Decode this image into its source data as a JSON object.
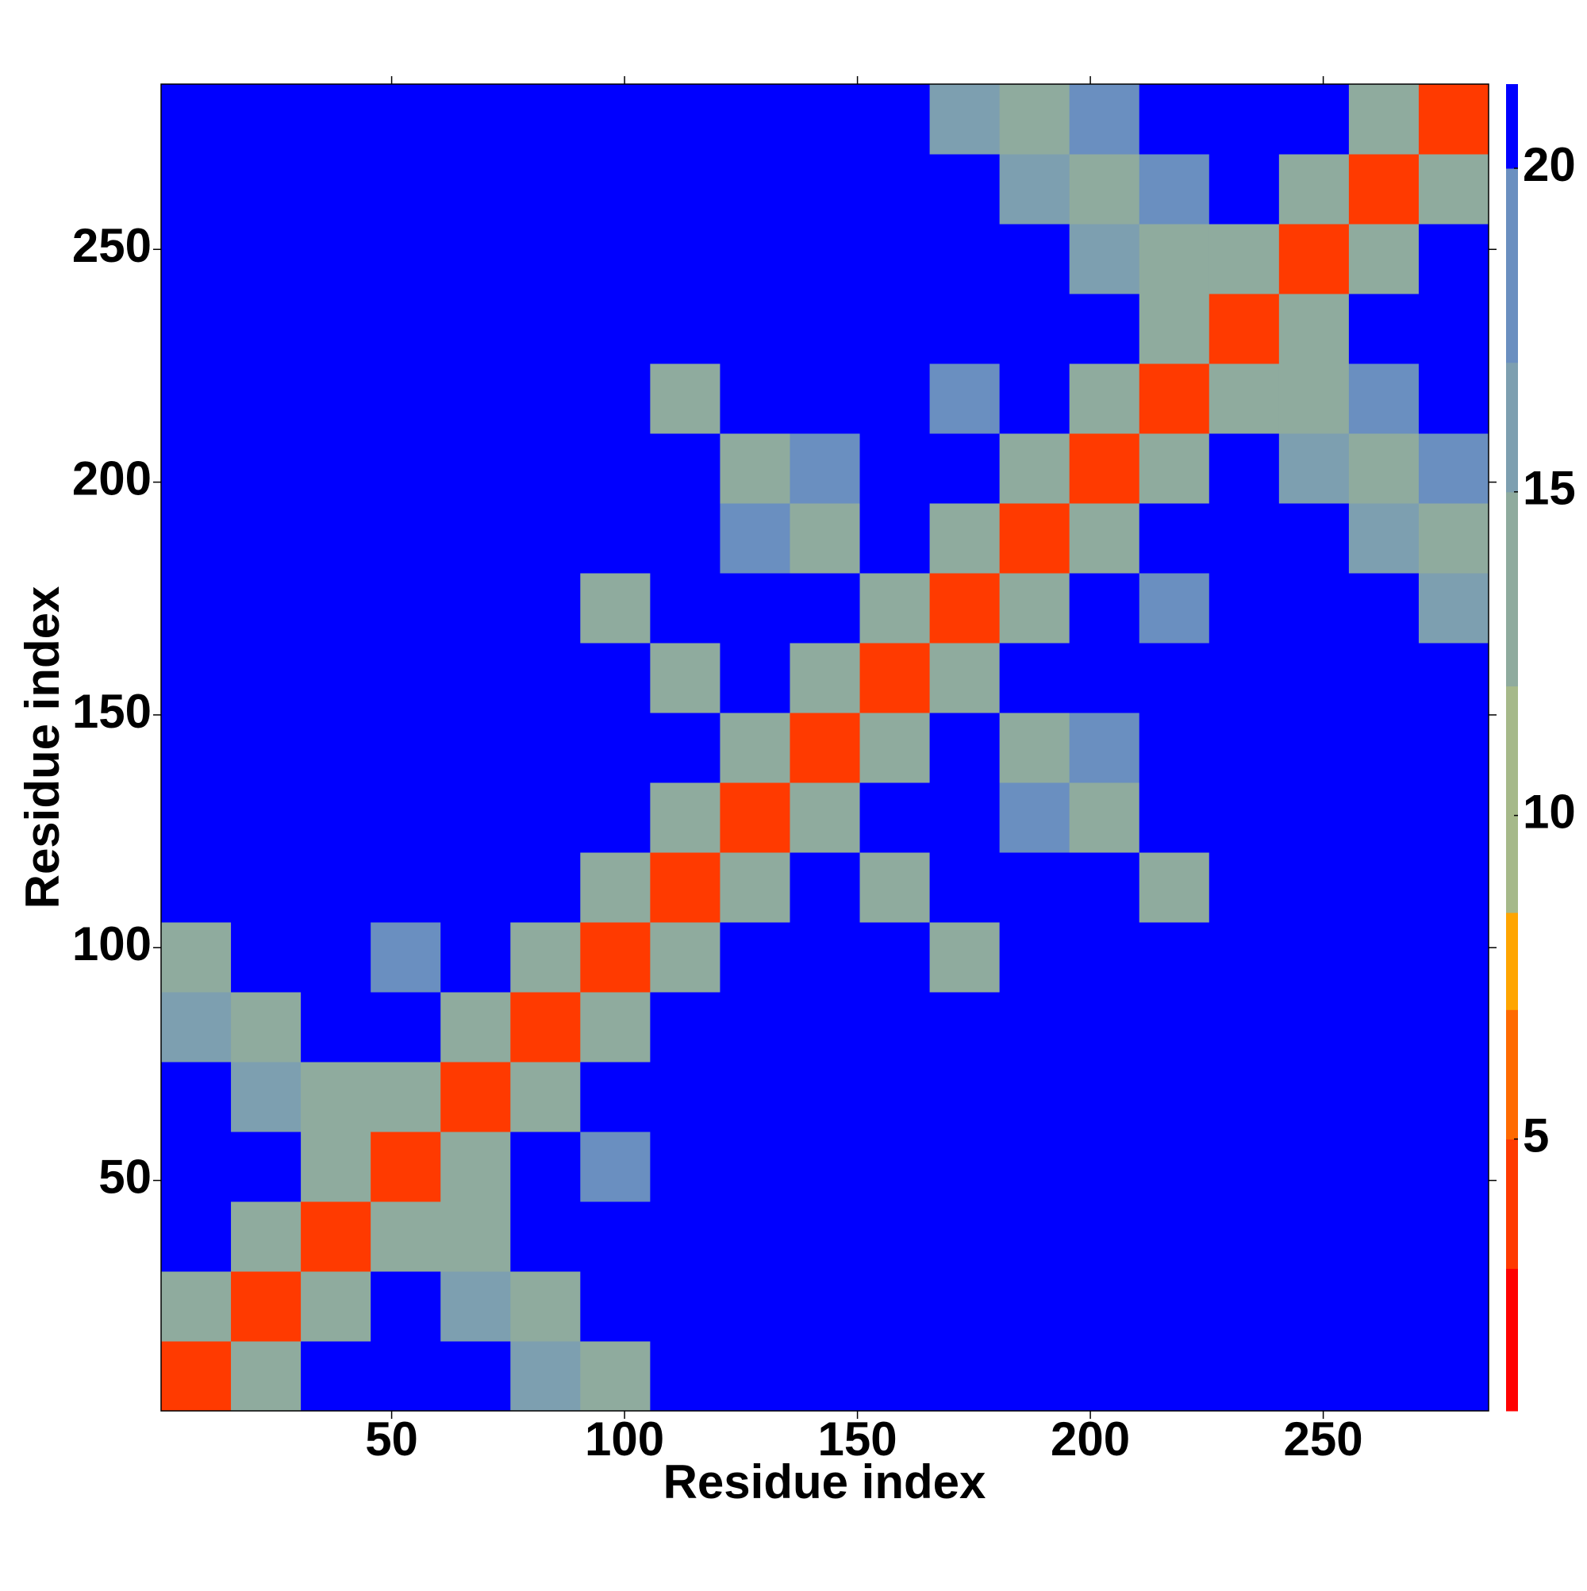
{
  "chart_data": {
    "type": "heatmap",
    "x_label": "Residue index",
    "y_label": "Residue index",
    "x": [
      8,
      23,
      38,
      53,
      68,
      83,
      98,
      113,
      128,
      143,
      158,
      173,
      188,
      203,
      218,
      233,
      248,
      263,
      278
    ],
    "y": [
      8,
      23,
      38,
      53,
      68,
      83,
      98,
      113,
      128,
      143,
      158,
      173,
      188,
      203,
      218,
      233,
      248,
      263,
      278
    ],
    "z": [
      [
        4,
        14,
        21,
        21,
        21,
        15,
        13,
        21,
        21,
        21,
        21,
        21,
        21,
        21,
        21,
        21,
        21,
        21,
        21
      ],
      [
        14,
        4,
        14,
        21,
        15,
        13,
        21,
        21,
        21,
        21,
        21,
        21,
        21,
        21,
        21,
        21,
        21,
        21,
        21
      ],
      [
        21,
        14,
        4,
        14,
        13,
        21,
        21,
        21,
        21,
        21,
        21,
        21,
        21,
        21,
        21,
        21,
        21,
        21,
        21
      ],
      [
        21,
        21,
        14,
        4,
        14,
        21,
        19,
        21,
        21,
        21,
        21,
        21,
        21,
        21,
        21,
        21,
        21,
        21,
        21
      ],
      [
        21,
        15,
        13,
        14,
        4,
        14,
        21,
        21,
        21,
        21,
        21,
        21,
        21,
        21,
        21,
        21,
        21,
        21,
        21
      ],
      [
        15,
        13,
        21,
        21,
        14,
        4,
        14,
        21,
        21,
        21,
        21,
        21,
        21,
        21,
        21,
        21,
        21,
        21,
        21
      ],
      [
        13,
        21,
        21,
        19,
        21,
        14,
        4,
        14,
        21,
        21,
        21,
        12,
        21,
        21,
        21,
        21,
        21,
        21,
        21
      ],
      [
        21,
        21,
        21,
        21,
        21,
        21,
        14,
        4,
        14,
        21,
        12,
        21,
        21,
        21,
        12,
        21,
        21,
        21,
        21
      ],
      [
        21,
        21,
        21,
        21,
        21,
        21,
        21,
        14,
        4,
        12,
        21,
        21,
        19,
        12,
        21,
        21,
        21,
        21,
        21
      ],
      [
        21,
        21,
        21,
        21,
        21,
        21,
        21,
        21,
        12,
        4,
        14,
        21,
        12,
        19,
        21,
        21,
        21,
        21,
        21
      ],
      [
        21,
        21,
        21,
        21,
        21,
        21,
        21,
        12,
        21,
        14,
        4,
        12,
        21,
        21,
        21,
        21,
        21,
        21,
        21
      ],
      [
        21,
        21,
        21,
        21,
        21,
        21,
        12,
        21,
        21,
        21,
        12,
        4,
        14,
        21,
        19,
        21,
        21,
        21,
        16
      ],
      [
        21,
        21,
        21,
        21,
        21,
        21,
        21,
        21,
        19,
        12,
        21,
        14,
        4,
        14,
        21,
        21,
        21,
        16,
        13
      ],
      [
        21,
        21,
        21,
        21,
        21,
        21,
        21,
        21,
        12,
        19,
        21,
        21,
        14,
        4,
        14,
        21,
        16,
        13,
        17
      ],
      [
        21,
        21,
        21,
        21,
        21,
        21,
        21,
        12,
        21,
        21,
        21,
        19,
        21,
        14,
        4,
        14,
        13,
        17,
        21
      ],
      [
        21,
        21,
        21,
        21,
        21,
        21,
        21,
        21,
        21,
        21,
        21,
        21,
        21,
        21,
        14,
        4,
        14,
        21,
        21
      ],
      [
        21,
        21,
        21,
        21,
        21,
        21,
        21,
        21,
        21,
        21,
        21,
        21,
        21,
        16,
        13,
        14,
        4,
        14,
        21
      ],
      [
        21,
        21,
        21,
        21,
        21,
        21,
        21,
        21,
        21,
        21,
        21,
        21,
        16,
        13,
        17,
        21,
        14,
        4,
        14
      ],
      [
        21,
        21,
        21,
        21,
        21,
        21,
        21,
        21,
        21,
        21,
        21,
        16,
        13,
        17,
        21,
        21,
        21,
        14,
        4
      ]
    ],
    "xlim": [
      0.5,
      285.5
    ],
    "ylim": [
      0.5,
      285.5
    ],
    "xticks": [
      50,
      100,
      150,
      200,
      250
    ],
    "yticks": [
      50,
      100,
      150,
      200,
      250
    ],
    "zlim": [
      0.8,
      21.3
    ],
    "zticks": [
      5,
      10,
      15,
      20
    ],
    "colorscale": [
      {
        "value": 0.8,
        "color": "#ff0000"
      },
      {
        "value": 3,
        "color": "#ff3a00"
      },
      {
        "value": 5,
        "color": "#ff6a00"
      },
      {
        "value": 7,
        "color": "#ffa500"
      },
      {
        "value": 8.5,
        "color": "#a6b98a"
      },
      {
        "value": 12,
        "color": "#8fab9e"
      },
      {
        "value": 15,
        "color": "#7d9fb0"
      },
      {
        "value": 17,
        "color": "#6a8fc0"
      },
      {
        "value": 20,
        "color": "#0000ff"
      }
    ]
  }
}
